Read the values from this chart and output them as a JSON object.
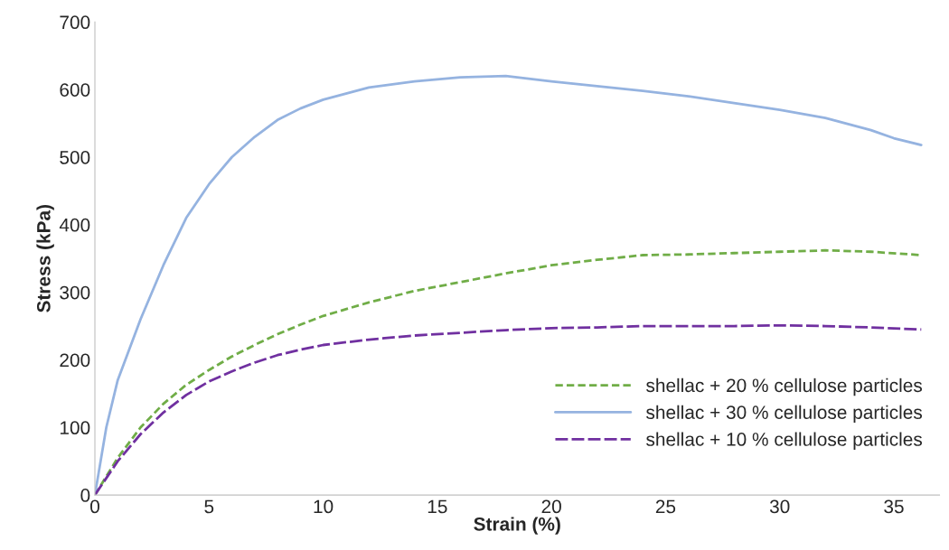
{
  "chart_data": {
    "type": "line",
    "xlabel": "Strain (%)",
    "ylabel": "Stress (kPa)",
    "xlim": [
      0,
      37
    ],
    "ylim": [
      0,
      700
    ],
    "xticks": [
      0,
      5,
      10,
      15,
      20,
      25,
      30,
      35
    ],
    "yticks": [
      0,
      100,
      200,
      300,
      400,
      500,
      600,
      700
    ],
    "grid": false,
    "legend": "bottom right",
    "marker": "none",
    "series": [
      {
        "name": "shellac + 20 % cellulose particles",
        "color": "#70ad47",
        "line_style": "dotted",
        "x": [
          0,
          1,
          2,
          3,
          4,
          5,
          6,
          7,
          8,
          9,
          10,
          12,
          14,
          16,
          18,
          20,
          22,
          24,
          26,
          28,
          30,
          32,
          34,
          36.2
        ],
        "values": [
          0,
          55,
          100,
          135,
          163,
          185,
          205,
          222,
          238,
          252,
          265,
          285,
          302,
          315,
          328,
          340,
          348,
          355,
          356,
          358,
          360,
          362,
          360,
          355
        ]
      },
      {
        "name": "shellac + 30 % cellulose particles",
        "color": "#95b3e0",
        "line_style": "solid",
        "x": [
          0,
          0.5,
          1,
          2,
          3,
          4,
          5,
          6,
          7,
          8,
          9,
          10,
          12,
          14,
          16,
          18,
          20,
          22,
          24,
          26,
          28,
          30,
          32,
          34,
          35,
          36.2
        ],
        "values": [
          0,
          100,
          170,
          260,
          340,
          410,
          460,
          500,
          530,
          555,
          572,
          585,
          603,
          612,
          618,
          620,
          612,
          605,
          598,
          590,
          580,
          570,
          558,
          540,
          528,
          518
        ]
      },
      {
        "name": "shellac + 10 % cellulose particles",
        "color": "#7030a0",
        "line_style": "dashed",
        "x": [
          0,
          1,
          2,
          3,
          4,
          5,
          6,
          7,
          8,
          9,
          10,
          12,
          14,
          16,
          18,
          20,
          22,
          24,
          26,
          28,
          30,
          32,
          34,
          36.2
        ],
        "values": [
          0,
          50,
          90,
          122,
          148,
          168,
          183,
          196,
          207,
          215,
          222,
          230,
          236,
          240,
          244,
          247,
          248,
          250,
          250,
          250,
          251,
          250,
          248,
          245
        ]
      }
    ]
  }
}
